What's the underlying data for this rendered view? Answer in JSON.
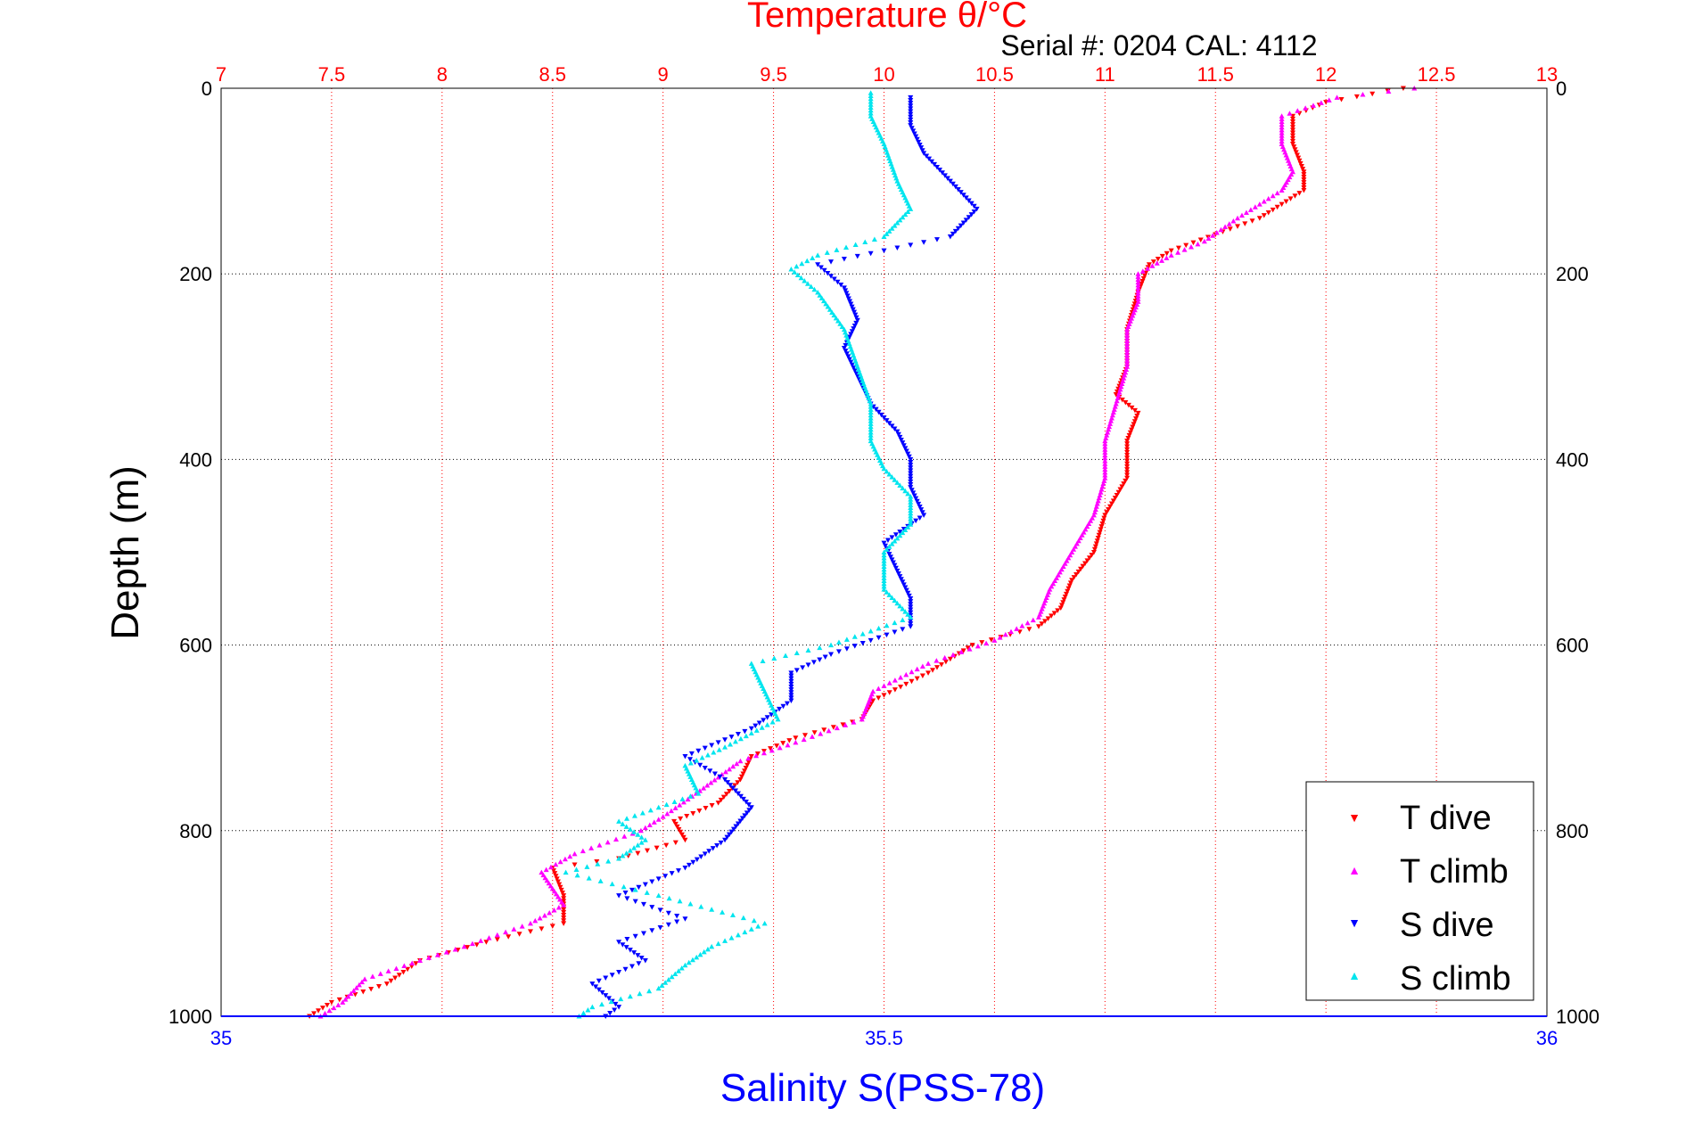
{
  "chart_data": {
    "type": "scatter",
    "title": "Temperature θ/°C",
    "subtitle": "Serial #: 0204  CAL: 4112",
    "xlabel_top": "Temperature θ/°C",
    "xlabel_bottom": "Salinity S(PSS-78)",
    "ylabel": "Depth (m)",
    "temperature_axis": {
      "lim": [
        7,
        13
      ],
      "ticks": [
        "7",
        "7.5",
        "8",
        "8.5",
        "9",
        "9.5",
        "10",
        "10.5",
        "11",
        "11.5",
        "12",
        "12.5",
        "13"
      ],
      "color": "#ff0000"
    },
    "salinity_axis": {
      "lim": [
        35,
        36
      ],
      "ticks": [
        "35",
        "35.5",
        "36"
      ],
      "color": "#0000ff"
    },
    "depth_axis": {
      "lim": [
        0,
        1000
      ],
      "reversed": true,
      "ticks": [
        "0",
        "200",
        "400",
        "600",
        "800",
        "1000"
      ]
    },
    "grid": true,
    "legend": {
      "placement": "bottom-right",
      "entries": [
        "T dive",
        "T climb",
        "S dive",
        "S climb"
      ]
    },
    "series": [
      {
        "name": "T dive",
        "axis": "temperature",
        "color": "#ff0000",
        "marker": "triangle-down",
        "points": [
          [
            12.35,
            0
          ],
          [
            12.0,
            15
          ],
          [
            11.85,
            30
          ],
          [
            11.85,
            60
          ],
          [
            11.9,
            90
          ],
          [
            11.9,
            110
          ],
          [
            11.7,
            140
          ],
          [
            11.3,
            175
          ],
          [
            11.2,
            190
          ],
          [
            11.15,
            220
          ],
          [
            11.1,
            260
          ],
          [
            11.1,
            300
          ],
          [
            11.05,
            330
          ],
          [
            11.15,
            350
          ],
          [
            11.1,
            380
          ],
          [
            11.1,
            420
          ],
          [
            11.0,
            460
          ],
          [
            10.95,
            500
          ],
          [
            10.85,
            530
          ],
          [
            10.8,
            560
          ],
          [
            10.7,
            580
          ],
          [
            10.4,
            600
          ],
          [
            10.2,
            630
          ],
          [
            9.95,
            660
          ],
          [
            9.9,
            680
          ],
          [
            9.6,
            700
          ],
          [
            9.4,
            720
          ],
          [
            9.35,
            745
          ],
          [
            9.25,
            770
          ],
          [
            9.05,
            790
          ],
          [
            9.1,
            810
          ],
          [
            8.8,
            830
          ],
          [
            8.5,
            840
          ],
          [
            8.55,
            870
          ],
          [
            8.55,
            900
          ],
          [
            8.2,
            920
          ],
          [
            7.9,
            940
          ],
          [
            7.75,
            965
          ],
          [
            7.5,
            985
          ],
          [
            7.4,
            1000
          ]
        ]
      },
      {
        "name": "T climb",
        "axis": "temperature",
        "color": "#ff00ff",
        "marker": "triangle-up",
        "points": [
          [
            12.4,
            0
          ],
          [
            12.05,
            10
          ],
          [
            11.8,
            30
          ],
          [
            11.8,
            60
          ],
          [
            11.85,
            90
          ],
          [
            11.8,
            110
          ],
          [
            11.6,
            140
          ],
          [
            11.45,
            165
          ],
          [
            11.3,
            180
          ],
          [
            11.15,
            200
          ],
          [
            11.15,
            230
          ],
          [
            11.1,
            260
          ],
          [
            11.1,
            300
          ],
          [
            11.05,
            340
          ],
          [
            11.0,
            380
          ],
          [
            11.0,
            420
          ],
          [
            10.95,
            460
          ],
          [
            10.85,
            500
          ],
          [
            10.75,
            540
          ],
          [
            10.7,
            570
          ],
          [
            10.5,
            595
          ],
          [
            10.2,
            620
          ],
          [
            9.95,
            650
          ],
          [
            9.9,
            680
          ],
          [
            9.6,
            705
          ],
          [
            9.35,
            725
          ],
          [
            9.15,
            760
          ],
          [
            9.0,
            785
          ],
          [
            8.9,
            800
          ],
          [
            8.6,
            825
          ],
          [
            8.45,
            845
          ],
          [
            8.55,
            880
          ],
          [
            8.4,
            900
          ],
          [
            8.1,
            925
          ],
          [
            7.9,
            940
          ],
          [
            7.65,
            960
          ],
          [
            7.55,
            985
          ],
          [
            7.45,
            1000
          ]
        ]
      },
      {
        "name": "S dive",
        "axis": "salinity",
        "color": "#0000ff",
        "marker": "triangle-down",
        "points": [
          [
            35.52,
            10
          ],
          [
            35.52,
            40
          ],
          [
            35.53,
            70
          ],
          [
            35.55,
            100
          ],
          [
            35.57,
            130
          ],
          [
            35.55,
            160
          ],
          [
            35.45,
            190
          ],
          [
            35.47,
            215
          ],
          [
            35.48,
            250
          ],
          [
            35.47,
            280
          ],
          [
            35.48,
            310
          ],
          [
            35.49,
            340
          ],
          [
            35.51,
            370
          ],
          [
            35.52,
            400
          ],
          [
            35.52,
            430
          ],
          [
            35.53,
            460
          ],
          [
            35.5,
            490
          ],
          [
            35.51,
            520
          ],
          [
            35.52,
            550
          ],
          [
            35.52,
            580
          ],
          [
            35.46,
            610
          ],
          [
            35.43,
            630
          ],
          [
            35.43,
            660
          ],
          [
            35.4,
            690
          ],
          [
            35.35,
            720
          ],
          [
            35.38,
            745
          ],
          [
            35.4,
            775
          ],
          [
            35.38,
            810
          ],
          [
            35.35,
            840
          ],
          [
            35.3,
            870
          ],
          [
            35.35,
            895
          ],
          [
            35.3,
            920
          ],
          [
            35.32,
            940
          ],
          [
            35.28,
            965
          ],
          [
            35.3,
            990
          ],
          [
            35.29,
            1000
          ]
        ]
      },
      {
        "name": "S climb",
        "axis": "salinity",
        "color": "#00e5ee",
        "marker": "triangle-up",
        "points": [
          [
            35.49,
            5
          ],
          [
            35.49,
            30
          ],
          [
            35.5,
            60
          ],
          [
            35.51,
            100
          ],
          [
            35.52,
            130
          ],
          [
            35.5,
            160
          ],
          [
            35.45,
            180
          ],
          [
            35.43,
            195
          ],
          [
            35.45,
            220
          ],
          [
            35.47,
            260
          ],
          [
            35.48,
            300
          ],
          [
            35.49,
            340
          ],
          [
            35.49,
            380
          ],
          [
            35.5,
            410
          ],
          [
            35.52,
            440
          ],
          [
            35.52,
            470
          ],
          [
            35.5,
            500
          ],
          [
            35.5,
            540
          ],
          [
            35.52,
            570
          ],
          [
            35.46,
            600
          ],
          [
            35.4,
            620
          ],
          [
            35.41,
            650
          ],
          [
            35.42,
            680
          ],
          [
            35.38,
            710
          ],
          [
            35.35,
            730
          ],
          [
            35.36,
            760
          ],
          [
            35.3,
            790
          ],
          [
            35.32,
            810
          ],
          [
            35.3,
            830
          ],
          [
            35.26,
            845
          ],
          [
            35.33,
            870
          ],
          [
            35.41,
            900
          ],
          [
            35.37,
            925
          ],
          [
            35.35,
            945
          ],
          [
            35.33,
            970
          ],
          [
            35.28,
            990
          ],
          [
            35.27,
            1000
          ]
        ]
      }
    ]
  }
}
